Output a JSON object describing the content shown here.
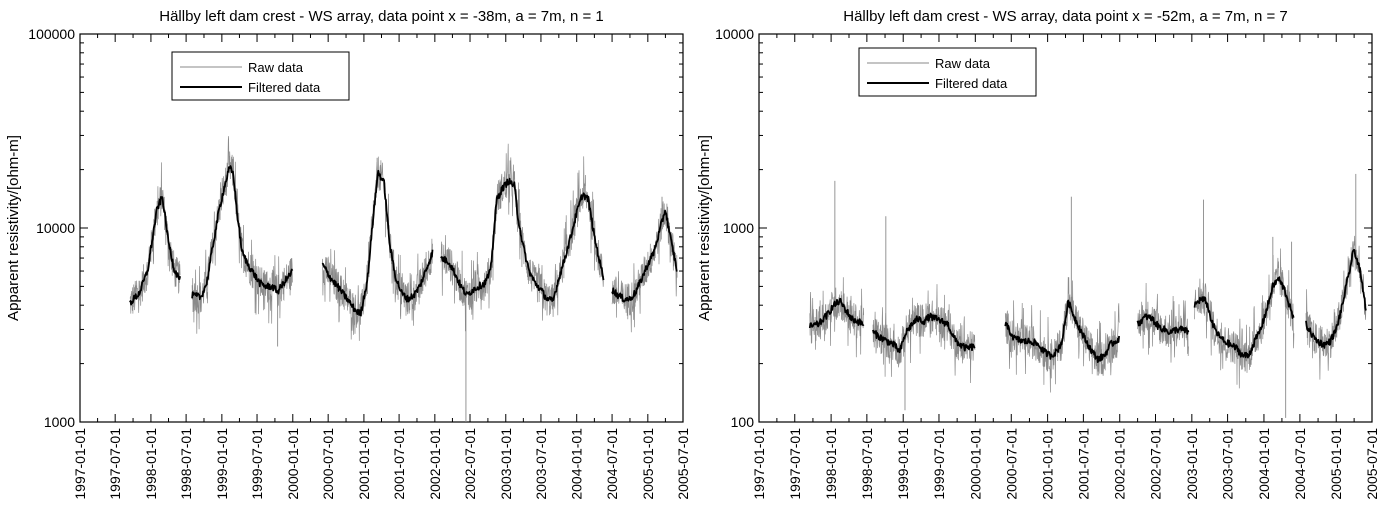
{
  "chart_data": [
    {
      "type": "line",
      "title": "Hällby left dam crest - WS array, data point x = -38m, a = 7m, n = 1",
      "xlabel": "",
      "ylabel": "Apparent resistivity/[ohm-m]",
      "yscale": "log",
      "ylim": [
        1000,
        100000
      ],
      "yticks": [
        "1000",
        "10000",
        "100000"
      ],
      "xlim": [
        "1997-01-01",
        "2005-07-01"
      ],
      "xticks": [
        "1997-01-01",
        "1997-07-01",
        "1998-01-01",
        "1998-07-01",
        "1999-01-01",
        "1999-07-01",
        "2000-01-01",
        "2000-07-01",
        "2001-01-01",
        "2001-07-01",
        "2002-01-01",
        "2002-07-01",
        "2003-01-01",
        "2003-07-01",
        "2004-01-01",
        "2004-07-01",
        "2005-01-01",
        "2005-07-01"
      ],
      "grid": false,
      "legend_position": "top-left",
      "series": [
        {
          "name": "Filtered data",
          "color": "#000000",
          "segments": [
            {
              "x": [
                "1997-09-15",
                "1997-11-01",
                "1997-12-15",
                "1998-01-10",
                "1998-02-01",
                "1998-03-01",
                "1998-04-01",
                "1998-05-01",
                "1998-06-01"
              ],
              "y": [
                4100,
                4600,
                6000,
                9000,
                12500,
                14500,
                8500,
                6100,
                5400
              ]
            },
            {
              "x": [
                "1998-08-01",
                "1998-09-15",
                "1998-10-15",
                "1998-11-15",
                "1998-12-15",
                "1999-01-15",
                "1999-02-10",
                "1999-03-01",
                "1999-03-20",
                "1999-04-15",
                "1999-05-15",
                "1999-06-15",
                "1999-07-15",
                "1999-08-15",
                "1999-09-15",
                "1999-10-15",
                "1999-11-15",
                "1999-12-31"
              ],
              "y": [
                4500,
                4400,
                5200,
                8000,
                12000,
                16500,
                20500,
                19000,
                12000,
                7500,
                6500,
                5800,
                5200,
                5000,
                5000,
                4700,
                5200,
                6000
              ]
            },
            {
              "x": [
                "2000-06-01",
                "2000-07-15",
                "2000-09-01",
                "2000-10-15",
                "2000-11-15",
                "2000-12-15",
                "2001-01-20",
                "2001-02-20",
                "2001-03-15",
                "2001-04-15",
                "2001-05-15",
                "2001-06-15",
                "2001-07-15",
                "2001-08-15",
                "2001-09-15",
                "2001-10-15",
                "2001-11-15",
                "2001-12-20"
              ],
              "y": [
                6500,
                5500,
                4800,
                4200,
                3800,
                3600,
                5500,
                12000,
                19500,
                17000,
                8000,
                5500,
                4600,
                4300,
                4500,
                5000,
                6000,
                7500
              ]
            },
            {
              "x": [
                "2002-02-01",
                "2002-03-15",
                "2002-04-15",
                "2002-05-15",
                "2002-06-15",
                "2002-07-15",
                "2002-08-15",
                "2002-09-15",
                "2002-10-15",
                "2002-11-15",
                "2002-12-15",
                "2003-01-15",
                "2003-02-15",
                "2003-03-01",
                "2003-04-01",
                "2003-05-01",
                "2003-06-01",
                "2003-07-01",
                "2003-08-01",
                "2003-09-01",
                "2003-10-01",
                "2003-11-01",
                "2003-12-01",
                "2004-01-01",
                "2004-02-01",
                "2004-03-01",
                "2004-04-01",
                "2004-05-01",
                "2004-05-20"
              ],
              "y": [
                7000,
                6700,
                5800,
                5000,
                4500,
                4800,
                5000,
                5200,
                6000,
                14000,
                16000,
                17500,
                16500,
                12000,
                8000,
                6000,
                5200,
                4800,
                4300,
                4200,
                5500,
                7000,
                9000,
                12000,
                15000,
                14000,
                9000,
                6500,
                5500
              ]
            },
            {
              "x": [
                "2004-07-01",
                "2004-08-01",
                "2004-09-01",
                "2004-10-01",
                "2004-11-01",
                "2004-12-01",
                "2005-01-01",
                "2005-02-01",
                "2005-03-01",
                "2005-04-01",
                "2005-05-01",
                "2005-06-01"
              ],
              "y": [
                4800,
                4500,
                4300,
                4300,
                4700,
                5500,
                6500,
                7500,
                9500,
                12500,
                8500,
                6000
              ]
            }
          ]
        },
        {
          "name": "Raw data",
          "color": "#8a8a8a",
          "spikes": [
            {
              "x": "2002-06-10",
              "y": 1000
            },
            {
              "x": "1999-10-15",
              "y": 2450
            },
            {
              "x": "2000-01-01",
              "y": 8700
            },
            {
              "x": "2001-03-10",
              "y": 23000
            },
            {
              "x": "2005-03-15",
              "y": 14500
            },
            {
              "x": "1999-02-15",
              "y": 21500
            }
          ]
        }
      ]
    },
    {
      "type": "line",
      "title": "Hällby left dam crest - WS array, data point x = -52m, a = 7m, n = 7",
      "xlabel": "",
      "ylabel": "Apparent resistivity/[ohm-m]",
      "yscale": "log",
      "ylim": [
        100,
        10000
      ],
      "yticks": [
        "100",
        "1000",
        "10000"
      ],
      "xlim": [
        "1997-01-01",
        "2005-07-01"
      ],
      "xticks": [
        "1997-01-01",
        "1997-07-01",
        "1998-01-01",
        "1998-07-01",
        "1999-01-01",
        "1999-07-01",
        "2000-01-01",
        "2000-07-01",
        "2001-01-01",
        "2001-07-01",
        "2002-01-01",
        "2002-07-01",
        "2003-01-01",
        "2003-07-01",
        "2004-01-01",
        "2004-07-01",
        "2005-01-01",
        "2005-07-01"
      ],
      "grid": false,
      "legend_position": "top-left",
      "series": [
        {
          "name": "Filtered data",
          "color": "#000000",
          "segments": [
            {
              "x": [
                "1997-09-15",
                "1997-11-01",
                "1997-12-15",
                "1998-01-15",
                "1998-02-15",
                "1998-03-15",
                "1998-04-15",
                "1998-05-15",
                "1998-06-15"
              ],
              "y": [
                310,
                320,
                360,
                400,
                420,
                380,
                340,
                330,
                320
              ]
            },
            {
              "x": [
                "1998-08-01",
                "1998-09-15",
                "1998-10-15",
                "1998-11-15",
                "1998-12-15",
                "1999-01-15",
                "1999-02-15",
                "1999-03-15",
                "1999-04-15",
                "1999-05-15",
                "1999-06-15",
                "1999-07-15",
                "1999-08-15",
                "1999-09-15",
                "1999-10-15",
                "1999-11-15",
                "1999-12-31"
              ],
              "y": [
                290,
                270,
                260,
                250,
                230,
                290,
                320,
                340,
                330,
                350,
                340,
                330,
                320,
                270,
                250,
                240,
                245
              ]
            },
            {
              "x": [
                "2000-06-01",
                "2000-07-15",
                "2000-09-01",
                "2000-10-15",
                "2000-11-15",
                "2000-12-15",
                "2001-01-15",
                "2001-02-15",
                "2001-03-15",
                "2001-04-15",
                "2001-05-15",
                "2001-06-15",
                "2001-07-15",
                "2001-08-15",
                "2001-09-15",
                "2001-10-15",
                "2001-11-15",
                "2001-12-31"
              ],
              "y": [
                320,
                270,
                260,
                260,
                250,
                230,
                220,
                230,
                260,
                420,
                350,
                300,
                260,
                230,
                210,
                220,
                250,
                270
              ]
            },
            {
              "x": [
                "2002-04-01",
                "2002-05-15",
                "2002-06-15",
                "2002-07-15",
                "2002-08-15",
                "2002-09-15",
                "2002-10-15",
                "2002-11-15",
                "2002-12-15"
              ],
              "y": [
                320,
                350,
                340,
                310,
                300,
                290,
                300,
                300,
                290
              ]
            },
            {
              "x": [
                "2003-01-15",
                "2003-02-15",
                "2003-03-15",
                "2003-04-15",
                "2003-05-15",
                "2003-06-15",
                "2003-07-15",
                "2003-08-15",
                "2003-09-15",
                "2003-10-15",
                "2003-11-15",
                "2003-12-15",
                "2004-01-15",
                "2004-02-15",
                "2004-03-15",
                "2004-04-15",
                "2004-05-15",
                "2004-06-01"
              ],
              "y": [
                400,
                430,
                420,
                320,
                280,
                260,
                250,
                240,
                220,
                220,
                260,
                300,
                380,
                500,
                550,
                480,
                380,
                330
              ]
            },
            {
              "x": [
                "2004-08-01",
                "2004-09-01",
                "2004-10-01",
                "2004-11-01",
                "2004-12-01",
                "2005-01-01",
                "2005-02-01",
                "2005-03-01",
                "2005-04-01",
                "2005-05-01",
                "2005-06-01"
              ],
              "y": [
                320,
                280,
                260,
                250,
                260,
                300,
                400,
                550,
                780,
                600,
                380
              ]
            }
          ]
        },
        {
          "name": "Raw data",
          "color": "#8a8a8a",
          "spikes": [
            {
              "x": "1998-01-20",
              "y": 1750
            },
            {
              "x": "1998-10-05",
              "y": 1150
            },
            {
              "x": "2001-05-01",
              "y": 1450
            },
            {
              "x": "2003-03-01",
              "y": 1400
            },
            {
              "x": "2005-04-10",
              "y": 1900
            },
            {
              "x": "1999-01-10",
              "y": 115
            },
            {
              "x": "2004-04-20",
              "y": 105
            },
            {
              "x": "2004-02-15",
              "y": 900
            },
            {
              "x": "2004-05-20",
              "y": 850
            }
          ]
        }
      ]
    }
  ]
}
